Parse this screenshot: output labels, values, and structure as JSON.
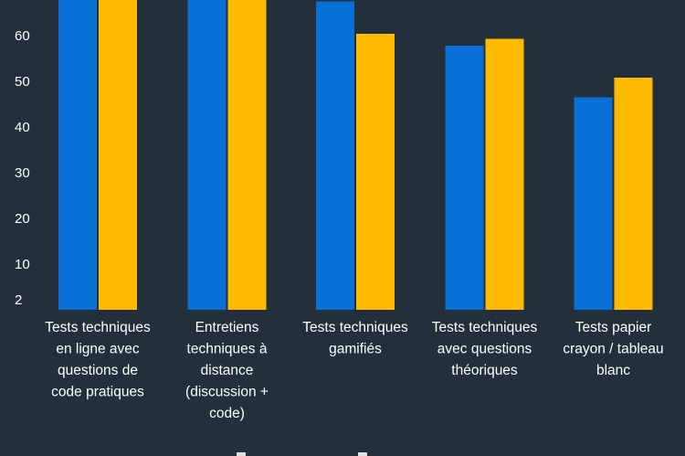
{
  "chart_data": {
    "type": "bar",
    "categories": [
      [
        "Tests techniques",
        "en ligne avec",
        "questions de",
        "code pratiques"
      ],
      [
        "Entretiens",
        "techniques à",
        "distance",
        "(discussion +",
        "code)"
      ],
      [
        "Tests techniques",
        "gamifiés"
      ],
      [
        "Tests techniques",
        "avec questions",
        "théoriques"
      ],
      [
        "Tests papier",
        "crayon / tableau",
        "blanc"
      ]
    ],
    "series": [
      {
        "values": [
          75,
          73,
          67.5,
          57.8,
          46.5
        ]
      },
      {
        "values": [
          74,
          72,
          60.4,
          59.3,
          50.8
        ]
      }
    ],
    "y_ticks": [
      2,
      10,
      20,
      30,
      40,
      50,
      60
    ],
    "y_tick_labels": [
      "2",
      "10",
      "20",
      "30",
      "40",
      "50",
      "60"
    ],
    "ylim_visible": [
      0,
      67.5
    ],
    "grid": false,
    "title": "",
    "xlabel": "",
    "ylabel": ""
  },
  "colors": {
    "background": "#232f3b",
    "series_1": "#0a6fd6",
    "series_2": "#fdba00",
    "text": "#ffffff"
  }
}
